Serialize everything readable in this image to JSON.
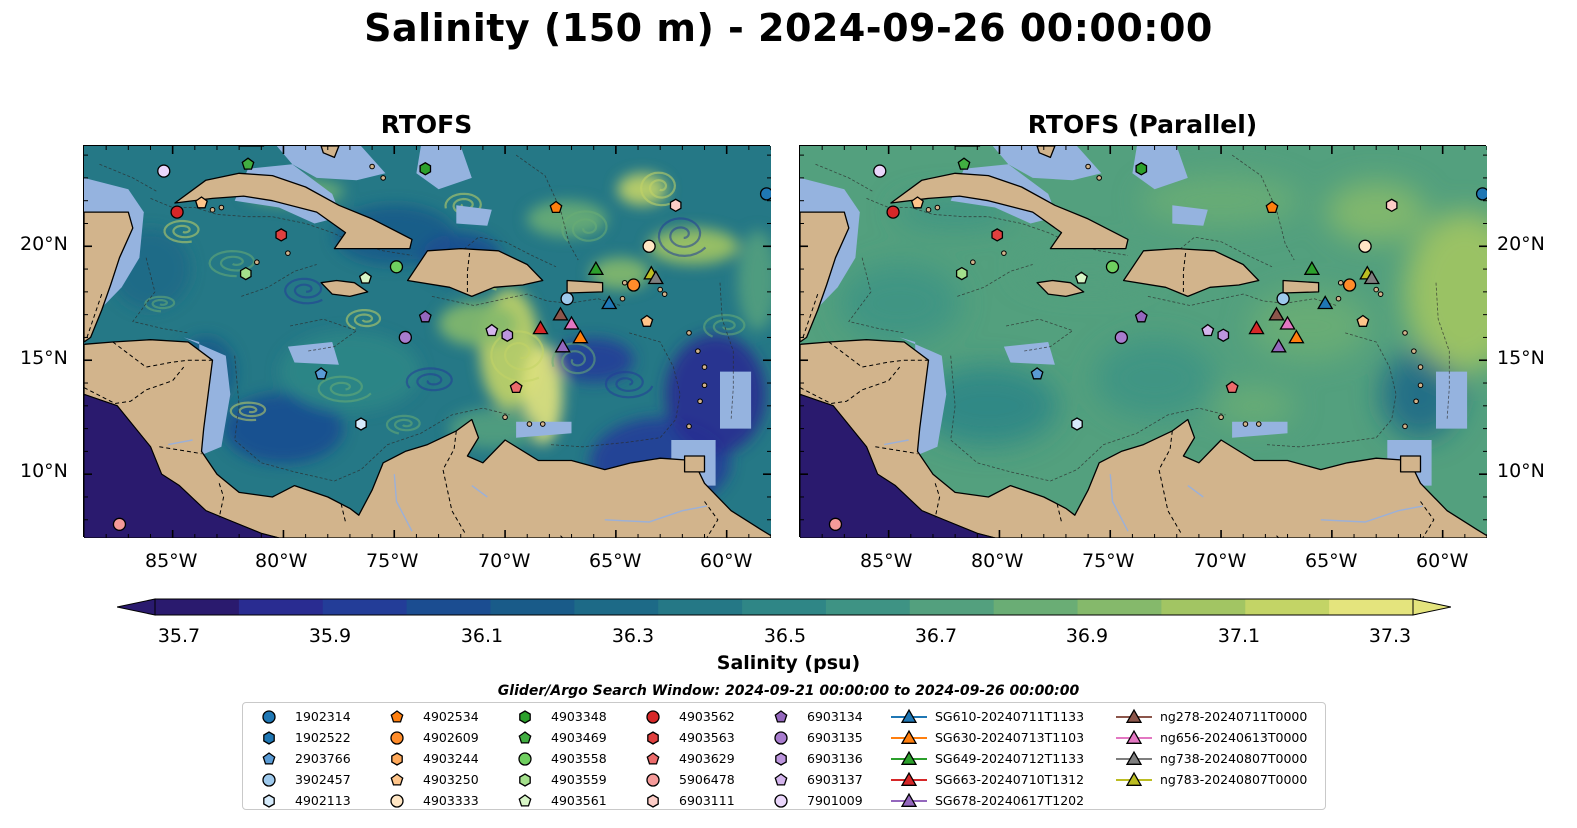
{
  "figure": {
    "title": "Salinity (150 m) - 2024-09-26 00:00:00",
    "panels": [
      {
        "title": "RTOFS",
        "style": "eddy"
      },
      {
        "title": "RTOFS (Parallel)",
        "style": "smooth"
      }
    ],
    "lon_ticks": [
      "85°W",
      "80°W",
      "75°W",
      "70°W",
      "65°W",
      "60°W"
    ],
    "lat_ticks": [
      "20°N",
      "15°N",
      "10°N"
    ],
    "lon_range": [
      -89,
      -58
    ],
    "lat_range": [
      7.2,
      24.4
    ],
    "land_color": "#d2b48c",
    "shelf_color": "#95b3df"
  },
  "colorbar": {
    "label": "Salinity (psu)",
    "ticks": [
      "35.7",
      "35.9",
      "36.1",
      "36.3",
      "36.5",
      "36.7",
      "36.9",
      "37.1",
      "37.3"
    ],
    "range": [
      35.6,
      37.4
    ],
    "colors": [
      "#2a1a6e",
      "#292c91",
      "#233d98",
      "#1b4d91",
      "#195b89",
      "#1d6a87",
      "#257886",
      "#2f8686",
      "#3e9384",
      "#53a07e",
      "#6aad75",
      "#85b96b",
      "#a2c563",
      "#c3d466",
      "#e4e47d"
    ]
  },
  "search_window": "Glider/Argo Search Window: 2024-09-21 00:00:00 to 2024-09-26 00:00:00",
  "legend": [
    {
      "label": "1902314",
      "marker": "circle",
      "color": "#1f77b4"
    },
    {
      "label": "1902522",
      "marker": "hexagon",
      "color": "#1f77b4"
    },
    {
      "label": "2903766",
      "marker": "pentagon",
      "color": "#5a9bd5"
    },
    {
      "label": "3902457",
      "marker": "circle",
      "color": "#9ec9ec"
    },
    {
      "label": "4902113",
      "marker": "hexagon",
      "color": "#d6ebfb"
    },
    {
      "label": "4902534",
      "marker": "pentagon",
      "color": "#ff7f0e"
    },
    {
      "label": "4902609",
      "marker": "circle",
      "color": "#ff8c2a"
    },
    {
      "label": "4903244",
      "marker": "hexagon",
      "color": "#ffa95a"
    },
    {
      "label": "4903250",
      "marker": "pentagon",
      "color": "#ffc58a"
    },
    {
      "label": "4903333",
      "marker": "circle",
      "color": "#ffe6c4"
    },
    {
      "label": "4903348",
      "marker": "hexagon",
      "color": "#2ca02c"
    },
    {
      "label": "4903469",
      "marker": "pentagon",
      "color": "#41ae41"
    },
    {
      "label": "4903558",
      "marker": "circle",
      "color": "#6fcf5f"
    },
    {
      "label": "4903559",
      "marker": "hexagon",
      "color": "#a4e08c"
    },
    {
      "label": "4903561",
      "marker": "pentagon",
      "color": "#d7f5c6"
    },
    {
      "label": "4903562",
      "marker": "circle",
      "color": "#d62728"
    },
    {
      "label": "4903563",
      "marker": "hexagon",
      "color": "#e0403f"
    },
    {
      "label": "4903629",
      "marker": "pentagon",
      "color": "#ec6b6b"
    },
    {
      "label": "5906478",
      "marker": "circle",
      "color": "#f59a99"
    },
    {
      "label": "6903111",
      "marker": "hexagon",
      "color": "#fdcdc7"
    },
    {
      "label": "6903134",
      "marker": "pentagon",
      "color": "#9467bd"
    },
    {
      "label": "6903135",
      "marker": "circle",
      "color": "#a87cce"
    },
    {
      "label": "6903136",
      "marker": "hexagon",
      "color": "#bc95dd"
    },
    {
      "label": "6903137",
      "marker": "pentagon",
      "color": "#d3b4ec"
    },
    {
      "label": "7901009",
      "marker": "circle",
      "color": "#ead6fb"
    },
    {
      "label": "SG610-20240711T1133",
      "marker": "triangle",
      "color": "#1f77b4"
    },
    {
      "label": "SG630-20240713T1103",
      "marker": "triangle",
      "color": "#ff7f0e"
    },
    {
      "label": "SG649-20240712T1133",
      "marker": "triangle",
      "color": "#2ca02c"
    },
    {
      "label": "SG663-20240710T1312",
      "marker": "triangle",
      "color": "#d62728"
    },
    {
      "label": "SG678-20240617T1202",
      "marker": "triangle",
      "color": "#9467bd"
    },
    {
      "label": "ng278-20240711T0000",
      "marker": "triangle",
      "color": "#8c564b"
    },
    {
      "label": "ng656-20240613T0000",
      "marker": "triangle",
      "color": "#e377c2"
    },
    {
      "label": "ng738-20240807T0000",
      "marker": "triangle",
      "color": "#7f7f7f"
    },
    {
      "label": "ng783-20240807T0000",
      "marker": "triangle",
      "color": "#bcbd22"
    }
  ],
  "observations": [
    {
      "id": "1902314",
      "lon": -58.2,
      "lat": 22.3
    },
    {
      "id": "7901009",
      "lon": -85.4,
      "lat": 23.3
    },
    {
      "id": "4903562",
      "lon": -84.8,
      "lat": 21.5
    },
    {
      "id": "4903250",
      "lon": -83.7,
      "lat": 21.9
    },
    {
      "id": "4903469",
      "lon": -81.6,
      "lat": 23.6
    },
    {
      "id": "4903348",
      "lon": -73.6,
      "lat": 23.4
    },
    {
      "id": "4903563",
      "lon": -80.1,
      "lat": 20.5
    },
    {
      "id": "4903559",
      "lon": -81.7,
      "lat": 18.8
    },
    {
      "id": "4903561",
      "lon": -76.3,
      "lat": 18.6
    },
    {
      "id": "4903558",
      "lon": -74.9,
      "lat": 19.1
    },
    {
      "id": "4902534",
      "lon": -67.7,
      "lat": 21.7
    },
    {
      "id": "6903111",
      "lon": -62.3,
      "lat": 21.8
    },
    {
      "id": "4903333",
      "lon": -63.5,
      "lat": 20.0
    },
    {
      "id": "4902609",
      "lon": -64.2,
      "lat": 18.3
    },
    {
      "id": "3902457",
      "lon": -67.2,
      "lat": 17.7
    },
    {
      "id": "6903134",
      "lon": -73.6,
      "lat": 16.9
    },
    {
      "id": "6903135",
      "lon": -74.5,
      "lat": 16.0
    },
    {
      "id": "6903137",
      "lon": -70.6,
      "lat": 16.3
    },
    {
      "id": "6903136",
      "lon": -69.9,
      "lat": 16.1
    },
    {
      "id": "4903250",
      "lon": -63.6,
      "lat": 16.7
    },
    {
      "id": "2903766",
      "lon": -78.3,
      "lat": 14.4
    },
    {
      "id": "4903629",
      "lon": -69.5,
      "lat": 13.8
    },
    {
      "id": "4902113",
      "lon": -76.5,
      "lat": 12.2
    },
    {
      "id": "5906478",
      "lon": -87.4,
      "lat": 7.8
    },
    {
      "id": "SG610-20240711T1133",
      "lon": -65.3,
      "lat": 17.5
    },
    {
      "id": "SG649-20240712T1133",
      "lon": -65.9,
      "lat": 19.0
    },
    {
      "id": "ng783-20240807T0000",
      "lon": -63.4,
      "lat": 18.8
    },
    {
      "id": "ng738-20240807T0000",
      "lon": -63.2,
      "lat": 18.6
    },
    {
      "id": "SG630-20240713T1103",
      "lon": -66.6,
      "lat": 16.0
    },
    {
      "id": "SG663-20240710T1312",
      "lon": -68.4,
      "lat": 16.4
    },
    {
      "id": "ng278-20240711T0000",
      "lon": -67.5,
      "lat": 17.0
    },
    {
      "id": "ng656-20240613T0000",
      "lon": -67.0,
      "lat": 16.6
    },
    {
      "id": "SG678-20240617T1202",
      "lon": -67.4,
      "lat": 15.6
    }
  ]
}
